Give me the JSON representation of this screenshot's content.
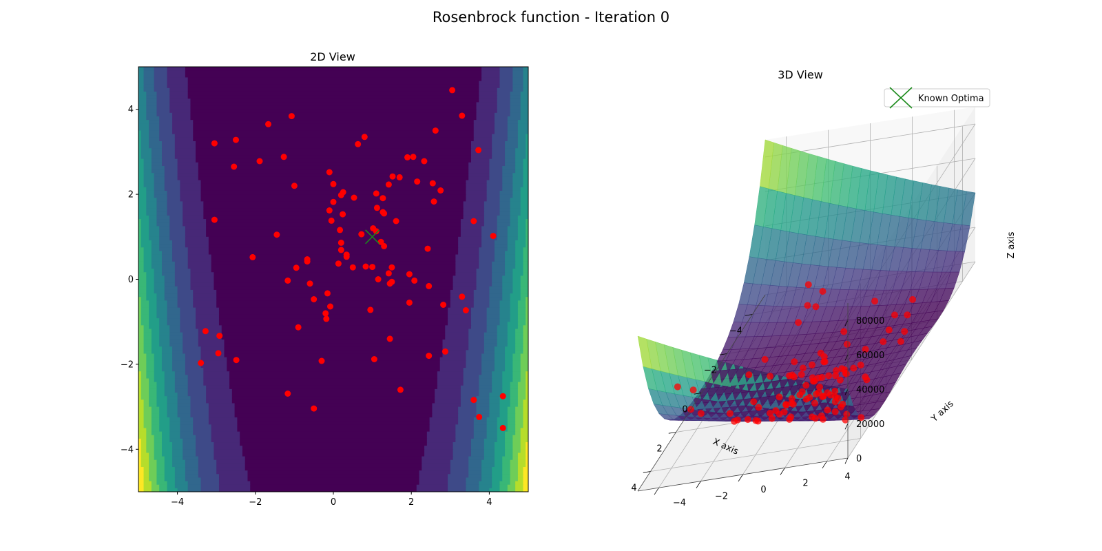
{
  "figure_title": "Rosenbrock function - Iteration 0",
  "chart_data": [
    {
      "type": "contour",
      "title": "2D View",
      "function": "rosenbrock",
      "xlim": [
        -5,
        5
      ],
      "ylim": [
        -5,
        5
      ],
      "xticks": [
        "−4",
        "−2",
        "0",
        "2",
        "4"
      ],
      "yticks": [
        "−4",
        "−2",
        "0",
        "2",
        "4"
      ],
      "colormap": "viridis",
      "optimum": {
        "x": 1,
        "y": 1,
        "marker": "x",
        "color": "#1a8a1a"
      },
      "points_color": "#ff0000",
      "points": [
        [
          -3.05,
          3.2
        ],
        [
          -2.5,
          3.28
        ],
        [
          -2.55,
          2.65
        ],
        [
          -1.67,
          3.65
        ],
        [
          -1.07,
          3.84
        ],
        [
          -1.89,
          2.78
        ],
        [
          -1.27,
          2.88
        ],
        [
          -1.0,
          2.2
        ],
        [
          -3.05,
          1.4
        ],
        [
          -1.45,
          1.05
        ],
        [
          -2.07,
          0.52
        ],
        [
          -0.95,
          0.27
        ],
        [
          -0.67,
          0.42
        ],
        [
          -0.67,
          0.47
        ],
        [
          -1.17,
          -0.03
        ],
        [
          -0.6,
          -0.1
        ],
        [
          -0.5,
          -0.47
        ],
        [
          -0.3,
          -1.92
        ],
        [
          -0.9,
          -1.13
        ],
        [
          -0.5,
          -3.04
        ],
        [
          -1.17,
          -2.69
        ],
        [
          -3.28,
          -1.22
        ],
        [
          -2.92,
          -1.33
        ],
        [
          -2.95,
          -1.74
        ],
        [
          -2.49,
          -1.9
        ],
        [
          -3.4,
          -1.97
        ],
        [
          -0.1,
          2.52
        ],
        [
          0.0,
          2.24
        ],
        [
          0.2,
          1.98
        ],
        [
          0.25,
          2.05
        ],
        [
          0.53,
          1.92
        ],
        [
          0.63,
          3.18
        ],
        [
          0.8,
          3.35
        ],
        [
          -0.1,
          1.62
        ],
        [
          -0.05,
          1.38
        ],
        [
          0.0,
          1.82
        ],
        [
          0.24,
          1.53
        ],
        [
          0.17,
          1.16
        ],
        [
          0.2,
          0.86
        ],
        [
          0.2,
          0.69
        ],
        [
          0.34,
          0.53
        ],
        [
          0.34,
          0.58
        ],
        [
          0.5,
          0.28
        ],
        [
          0.13,
          0.37
        ],
        [
          -0.18,
          -0.93
        ],
        [
          -0.2,
          -0.8
        ],
        [
          -0.15,
          -0.33
        ],
        [
          -0.08,
          -0.64
        ],
        [
          0.72,
          1.06
        ],
        [
          0.83,
          0.3
        ],
        [
          0.95,
          -0.72
        ],
        [
          1.0,
          0.29
        ],
        [
          1.02,
          1.2
        ],
        [
          1.1,
          1.13
        ],
        [
          1.1,
          2.02
        ],
        [
          1.12,
          1.68
        ],
        [
          1.22,
          0.88
        ],
        [
          1.27,
          1.91
        ],
        [
          1.27,
          1.58
        ],
        [
          1.3,
          1.55
        ],
        [
          1.3,
          0.78
        ],
        [
          1.15,
          0.0
        ],
        [
          1.05,
          -1.88
        ],
        [
          1.42,
          2.23
        ],
        [
          1.42,
          0.14
        ],
        [
          1.45,
          -0.1
        ],
        [
          1.45,
          -1.4
        ],
        [
          1.5,
          -0.06
        ],
        [
          1.5,
          0.28
        ],
        [
          1.52,
          2.42
        ],
        [
          1.61,
          1.37
        ],
        [
          1.7,
          2.4
        ],
        [
          1.72,
          -2.6
        ],
        [
          1.9,
          2.87
        ],
        [
          1.95,
          0.12
        ],
        [
          1.95,
          -0.55
        ],
        [
          2.05,
          2.88
        ],
        [
          2.08,
          -0.03
        ],
        [
          2.15,
          2.3
        ],
        [
          2.33,
          2.78
        ],
        [
          2.42,
          0.72
        ],
        [
          2.45,
          -0.16
        ],
        [
          2.45,
          -1.8
        ],
        [
          2.55,
          2.26
        ],
        [
          2.58,
          1.83
        ],
        [
          2.62,
          3.5
        ],
        [
          2.75,
          2.09
        ],
        [
          2.82,
          -0.6
        ],
        [
          2.87,
          -1.7
        ],
        [
          3.05,
          4.45
        ],
        [
          3.3,
          3.85
        ],
        [
          3.3,
          -0.41
        ],
        [
          3.4,
          -0.73
        ],
        [
          3.6,
          1.37
        ],
        [
          3.6,
          -2.84
        ],
        [
          3.72,
          3.04
        ],
        [
          3.74,
          -3.24
        ],
        [
          4.1,
          1.02
        ],
        [
          4.35,
          -2.75
        ],
        [
          4.35,
          -3.5
        ]
      ]
    },
    {
      "type": "surface3d",
      "title": "3D View",
      "function": "rosenbrock",
      "xlim": [
        -5,
        5
      ],
      "ylim": [
        -5,
        5
      ],
      "zlim": [
        0,
        90000
      ],
      "xlabel": "X axis",
      "ylabel": "Y axis",
      "zlabel": "Z axis",
      "xticks": [
        "−4",
        "−2",
        "0",
        "2",
        "4"
      ],
      "yticks": [
        "−4",
        "−2",
        "0",
        "2",
        "4"
      ],
      "zticks": [
        "0",
        "20000",
        "40000",
        "60000",
        "80000"
      ],
      "colormap": "viridis",
      "surface_alpha": 0.6,
      "grid": true,
      "legend": {
        "position": "top-right",
        "entries": [
          {
            "label": "Known Optima",
            "marker": "x",
            "color": "#1a8a1a"
          }
        ]
      },
      "points_color": "#ff0000"
    }
  ]
}
